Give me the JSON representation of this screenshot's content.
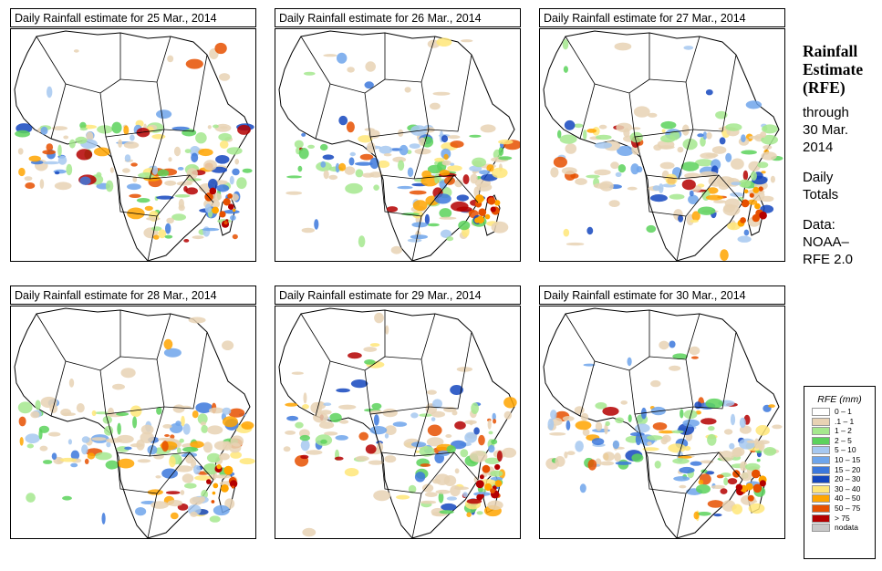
{
  "panels": [
    {
      "title": "Daily Rainfall estimate for  25 Mar., 2014"
    },
    {
      "title": "Daily Rainfall estimate for  26 Mar., 2014"
    },
    {
      "title": "Daily Rainfall estimate for  27 Mar., 2014"
    },
    {
      "title": "Daily Rainfall estimate for  28 Mar., 2014"
    },
    {
      "title": "Daily Rainfall estimate for  29 Mar., 2014"
    },
    {
      "title": "Daily Rainfall estimate for  30 Mar., 2014"
    }
  ],
  "side": {
    "heading_line1": "Rainfall",
    "heading_line2": "Estimate",
    "heading_line3": "(RFE)",
    "through_line1": "through",
    "through_line2": "30 Mar.",
    "through_line3": "2014",
    "totals_line1": "Daily",
    "totals_line2": "Totals",
    "data_line1": "Data:",
    "data_line2": "NOAA–",
    "data_line3": "RFE 2.0"
  },
  "legend": {
    "title": "RFE (mm)",
    "items": [
      {
        "label": "0 – 1",
        "color": "#ffffff"
      },
      {
        "label": ".1 – 1",
        "color": "#e8d2b4"
      },
      {
        "label": "1 – 2",
        "color": "#a5e88e"
      },
      {
        "label": "2 – 5",
        "color": "#5cd25c"
      },
      {
        "label": "5 – 10",
        "color": "#a6c8f0"
      },
      {
        "label": "10 – 15",
        "color": "#6ea5eb"
      },
      {
        "label": "15 – 20",
        "color": "#3c78dc"
      },
      {
        "label": "20 – 30",
        "color": "#1446be"
      },
      {
        "label": "30 – 40",
        "color": "#ffe678"
      },
      {
        "label": "40 – 50",
        "color": "#ffa500"
      },
      {
        "label": "50 – 75",
        "color": "#e65000"
      },
      {
        "label": "> 75",
        "color": "#b40000"
      },
      {
        "label": "nodata",
        "color": "#c8c8c8"
      }
    ]
  }
}
